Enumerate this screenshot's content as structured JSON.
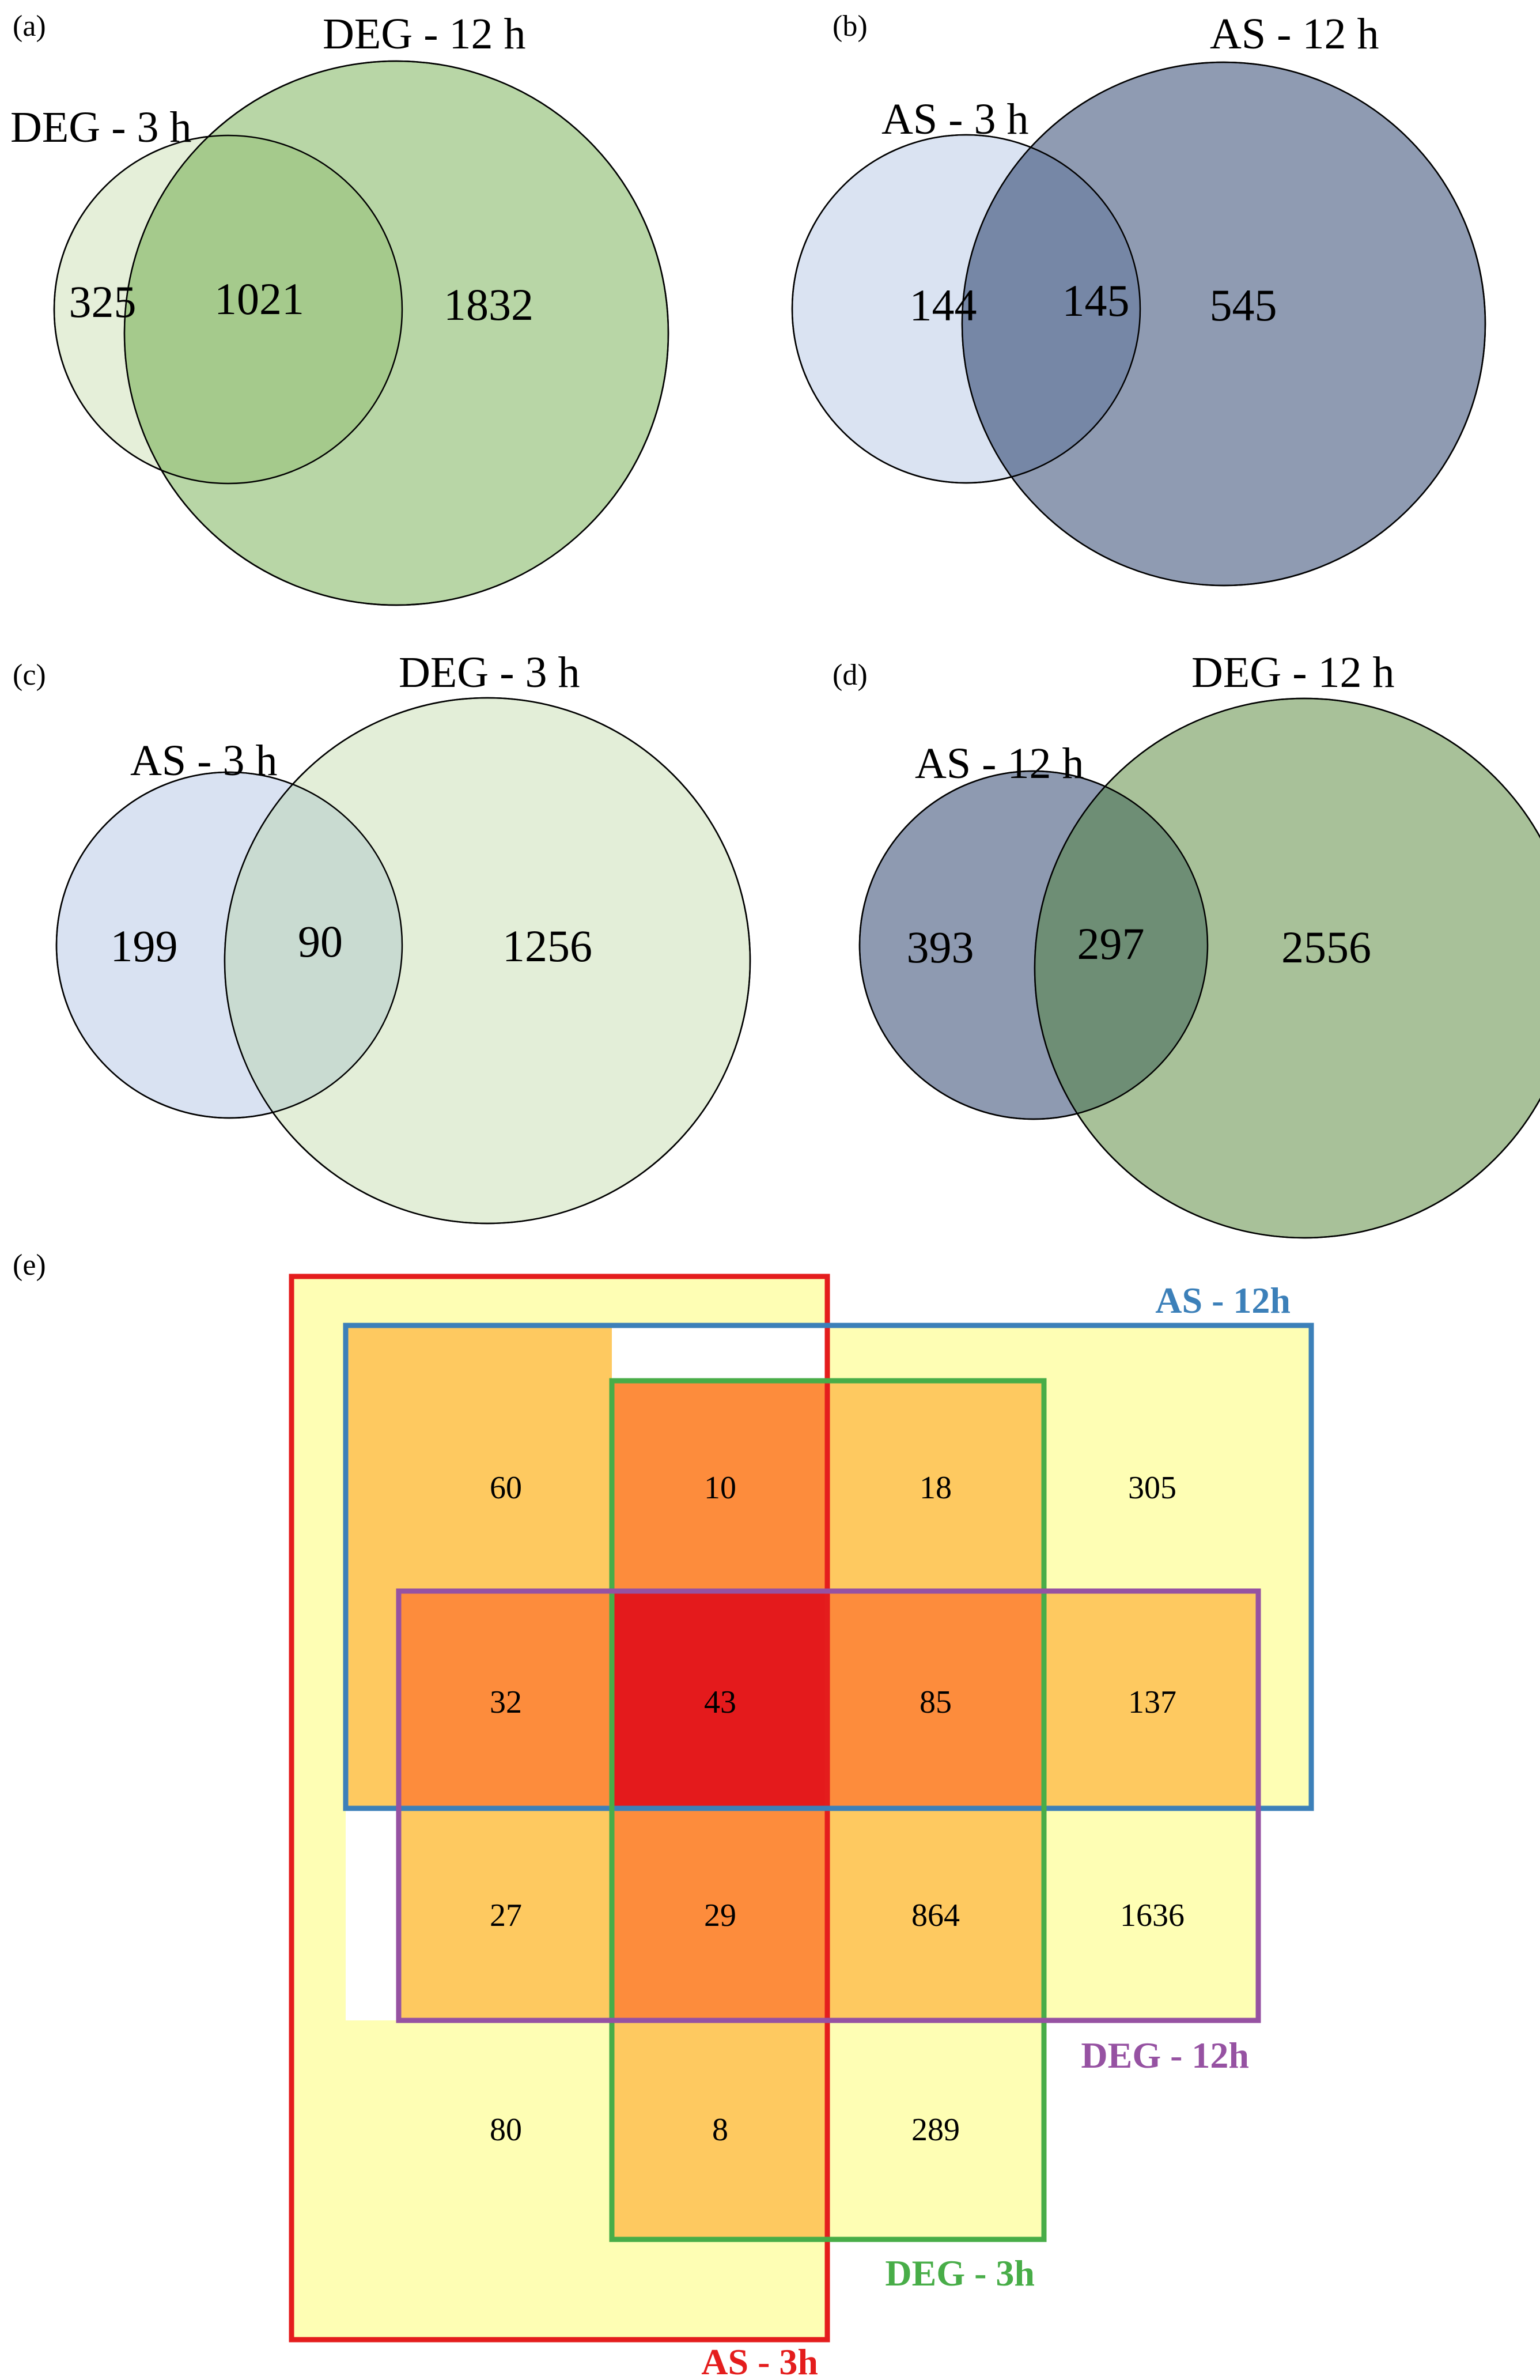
{
  "panels": {
    "a": {
      "label": "(a)",
      "left_title": "DEG - 3 h",
      "right_title": "DEG - 12 h",
      "left_only": "325",
      "overlap": "1021",
      "right_only": "1832",
      "colors": {
        "left": "#e5efd9",
        "right": "#b8d6a6",
        "overlap": "#a5ca8c"
      }
    },
    "b": {
      "label": "(b)",
      "left_title": "AS - 3 h",
      "right_title": "AS - 12 h",
      "left_only": "144",
      "overlap": "145",
      "right_only": "545",
      "colors": {
        "left": "#dae3f2",
        "right": "#8f9bb2",
        "overlap": "#7687a6"
      }
    },
    "c": {
      "label": "(c)",
      "left_title": "AS - 3 h",
      "right_title": "DEG - 3 h",
      "left_only": "199",
      "overlap": "90",
      "right_only": "1256",
      "colors": {
        "left": "#d9e2f2",
        "right": "#e3eed8",
        "overlap": "#c9dbd1"
      }
    },
    "d": {
      "label": "(d)",
      "left_title": "AS - 12 h",
      "right_title": "DEG - 12 h",
      "left_only": "393",
      "overlap": "297",
      "right_only": "2556",
      "colors": {
        "left": "#8e9ab1",
        "right": "#a8c199",
        "overlap": "#6e8e75"
      }
    }
  },
  "panel_e": {
    "label": "(e)",
    "set_labels": {
      "as3": "AS - 3h",
      "as12": "AS - 12h",
      "deg12": "DEG - 12h",
      "deg3": "DEG - 3h"
    },
    "set_colors": {
      "as3": "#e41d1d",
      "as12": "#3c80b9",
      "deg12": "#9652a2",
      "deg3": "#48ad48"
    },
    "fill_levels": {
      "1": "#fefeb4",
      "2": "#fec960",
      "3": "#fd8c3c",
      "4": "#e41a1c"
    },
    "grid": [
      [
        "60",
        "10",
        "18",
        "305"
      ],
      [
        "32",
        "43",
        "85",
        "137"
      ],
      [
        "27",
        "29",
        "864",
        "1636"
      ],
      [
        "80",
        "8",
        "289",
        ""
      ]
    ]
  }
}
